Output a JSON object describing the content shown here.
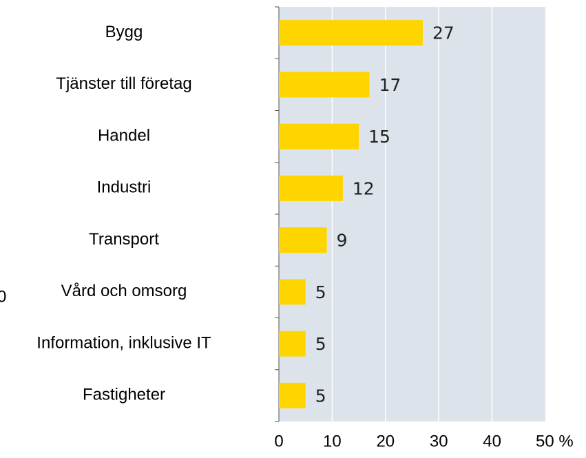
{
  "chart_data": {
    "type": "bar",
    "orientation": "horizontal",
    "categories": [
      "Bygg",
      "Tjänster till företag",
      "Handel",
      "Industri",
      "Transport",
      "Vård och omsorg",
      "Information, inklusive IT",
      "Fastigheter"
    ],
    "values": [
      27,
      17,
      15,
      12,
      9,
      5,
      5,
      5
    ],
    "color": "#ffd500",
    "xlim": [
      0,
      50
    ],
    "xticks": [
      0,
      10,
      20,
      30,
      40,
      {
        "value": 50,
        "label": "50 %"
      }
    ],
    "grid": true,
    "annotation": "0"
  }
}
